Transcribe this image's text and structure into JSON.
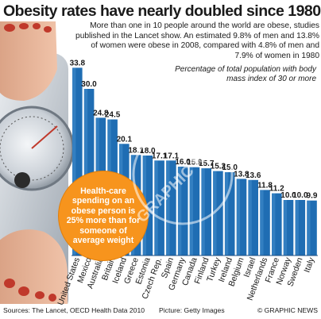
{
  "chart_data": {
    "type": "bar",
    "title": "Obesity rates have nearly doubled since 1980",
    "subtitle": "More than one in 10 people around the world are obese, studies published in the Lancet show. An estimated 9.8% of men and 13.8% of women were obese in 2008, compared with 4.8% of men and 7.9% of women in 1980",
    "ylabel": "Percentage of total population with body mass index of 30 or more",
    "xlabel": "",
    "categories": [
      "United States",
      "Mexico",
      "Australia",
      "Britain",
      "Iceland",
      "Greece",
      "Estonia",
      "Czech Rep.",
      "Spain",
      "Germany",
      "Canada",
      "Finland",
      "Turkey",
      "Ireland",
      "Belgium",
      "Israel",
      "Netherlands",
      "France",
      "Norway",
      "Sweden",
      "Italy"
    ],
    "values": [
      33.8,
      30.0,
      24.8,
      24.5,
      20.1,
      18.1,
      18.0,
      17.1,
      17.1,
      16.0,
      15.9,
      15.7,
      15.2,
      15.0,
      13.8,
      13.6,
      11.8,
      11.2,
      10.0,
      10.0,
      9.9
    ],
    "value_labels": [
      "33.8",
      "30.0",
      "24.8",
      "24.5",
      "20.1",
      "18.1",
      "18.0",
      "17.1",
      "17.1",
      "16.0",
      "15.9",
      "15.7",
      "15.2",
      "15.0",
      "13.8",
      "13.6",
      "11.8",
      "11.2",
      "10.0",
      "10.0",
      "9.9"
    ],
    "ylim": [
      0,
      36
    ],
    "grid": false,
    "legend": "none",
    "bar_color": "#1f6db3",
    "bar_highlight_color": "#5aa0dc"
  },
  "callout": {
    "text": "Health-care spending on an obese person is 25% more than for someone of average weight",
    "color": "#f7941d"
  },
  "footer": {
    "sources": "Sources: The Lancet, OECD Health Data 2010",
    "picture": "Picture: Getty Images",
    "credit": "© GRAPHIC NEWS"
  },
  "watermark": {
    "text": "© GRAPHIC NEWS"
  },
  "photo": {
    "description_icon": "scale-icon"
  }
}
